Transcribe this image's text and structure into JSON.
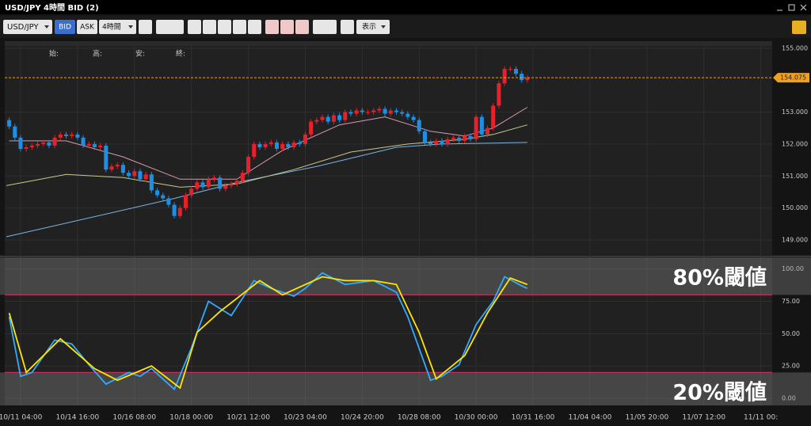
{
  "window": {
    "title": "USD/JPY 4時間 BID (2)"
  },
  "toolbar": {
    "symbol": "USD/JPY",
    "bid": "BID",
    "ask": "ASK",
    "timeframe": "4時間",
    "display": "表示"
  },
  "chart_data": [
    {
      "type": "candlestick",
      "ohlc_labels": [
        "始:",
        "高:",
        "安:",
        "終:"
      ],
      "xlim": [
        -0.5,
        134
      ],
      "ylim": [
        148.53,
        155.07
      ],
      "yticks": [
        {
          "value": 149,
          "label": "149.000"
        },
        {
          "value": 150,
          "label": "150.000"
        },
        {
          "value": 151,
          "label": "151.000"
        },
        {
          "value": 152,
          "label": "152.000"
        },
        {
          "value": 153,
          "label": "153.000"
        },
        {
          "value": 155,
          "label": "155.000"
        }
      ],
      "up_color": "#e8202a",
      "down_color": "#1e8fe6",
      "current_price": 154.075,
      "current_price_color": "#f0a020",
      "candles": [
        [
          152.75,
          152.83,
          152.47,
          152.55
        ],
        [
          152.55,
          152.63,
          152.12,
          152.2
        ],
        [
          152.2,
          152.28,
          151.77,
          151.85
        ],
        [
          151.85,
          151.98,
          151.77,
          151.9
        ],
        [
          151.9,
          152.03,
          151.82,
          151.95
        ],
        [
          151.95,
          152.08,
          151.87,
          152.0
        ],
        [
          152.0,
          152.13,
          151.92,
          152.05
        ],
        [
          152.05,
          152.13,
          151.87,
          151.95
        ],
        [
          151.95,
          152.28,
          151.87,
          152.2
        ],
        [
          152.2,
          152.38,
          152.12,
          152.3
        ],
        [
          152.3,
          152.38,
          152.17,
          152.25
        ],
        [
          152.25,
          152.38,
          152.17,
          152.3
        ],
        [
          152.3,
          152.38,
          152.12,
          152.2
        ],
        [
          152.2,
          152.28,
          151.87,
          151.95
        ],
        [
          151.95,
          152.08,
          151.87,
          152.0
        ],
        [
          152.0,
          152.08,
          151.82,
          151.9
        ],
        [
          151.9,
          152.03,
          151.82,
          151.95
        ],
        [
          151.95,
          152.03,
          151.12,
          151.2
        ],
        [
          151.2,
          151.38,
          151.12,
          151.3
        ],
        [
          151.3,
          151.43,
          151.22,
          151.35
        ],
        [
          151.35,
          151.43,
          151.02,
          151.1
        ],
        [
          151.1,
          151.18,
          150.92,
          151.0
        ],
        [
          151.0,
          151.23,
          150.92,
          151.15
        ],
        [
          151.15,
          151.23,
          150.82,
          150.9
        ],
        [
          150.9,
          151.13,
          150.82,
          151.05
        ],
        [
          151.05,
          151.13,
          150.47,
          150.55
        ],
        [
          150.55,
          150.63,
          150.32,
          150.4
        ],
        [
          150.4,
          150.48,
          150.22,
          150.3
        ],
        [
          150.3,
          150.38,
          150.02,
          150.1
        ],
        [
          150.1,
          150.18,
          149.67,
          149.75
        ],
        [
          149.75,
          150.08,
          149.67,
          150.0
        ],
        [
          150.0,
          150.48,
          149.92,
          150.4
        ],
        [
          150.4,
          150.68,
          150.32,
          150.6
        ],
        [
          150.6,
          150.88,
          150.52,
          150.8
        ],
        [
          150.8,
          150.88,
          150.57,
          150.65
        ],
        [
          150.65,
          150.98,
          150.57,
          150.9
        ],
        [
          150.9,
          151.03,
          150.82,
          150.95
        ],
        [
          150.95,
          151.03,
          150.52,
          150.6
        ],
        [
          150.6,
          150.78,
          150.52,
          150.7
        ],
        [
          150.7,
          150.83,
          150.62,
          150.75
        ],
        [
          150.75,
          150.93,
          150.67,
          150.85
        ],
        [
          150.85,
          151.18,
          150.77,
          151.1
        ],
        [
          151.1,
          151.68,
          151.02,
          151.6
        ],
        [
          151.6,
          152.08,
          151.52,
          152.0
        ],
        [
          152.0,
          152.08,
          151.82,
          151.9
        ],
        [
          151.9,
          152.08,
          151.82,
          152.0
        ],
        [
          152.0,
          152.13,
          151.92,
          152.05
        ],
        [
          152.05,
          152.13,
          151.77,
          151.85
        ],
        [
          151.85,
          152.08,
          151.77,
          152.0
        ],
        [
          152.0,
          152.08,
          151.82,
          151.9
        ],
        [
          151.9,
          152.13,
          151.82,
          152.05
        ],
        [
          152.05,
          152.13,
          151.92,
          152.0
        ],
        [
          152.0,
          152.38,
          151.92,
          152.3
        ],
        [
          152.3,
          152.78,
          152.22,
          152.7
        ],
        [
          152.7,
          152.83,
          152.62,
          152.75
        ],
        [
          152.75,
          152.93,
          152.67,
          152.85
        ],
        [
          152.85,
          152.93,
          152.62,
          152.7
        ],
        [
          152.7,
          152.98,
          152.62,
          152.9
        ],
        [
          152.9,
          152.98,
          152.67,
          152.75
        ],
        [
          152.75,
          153.08,
          152.67,
          153.0
        ],
        [
          153.0,
          153.08,
          152.87,
          152.95
        ],
        [
          152.95,
          153.13,
          152.87,
          153.05
        ],
        [
          153.05,
          153.13,
          152.92,
          153.0
        ],
        [
          153.0,
          153.08,
          152.92,
          153.0
        ],
        [
          153.0,
          153.13,
          152.92,
          153.05
        ],
        [
          153.05,
          153.18,
          152.97,
          153.1
        ],
        [
          153.1,
          153.18,
          152.87,
          152.95
        ],
        [
          152.95,
          153.13,
          152.87,
          153.05
        ],
        [
          153.05,
          153.13,
          152.92,
          153.0
        ],
        [
          153.0,
          153.08,
          152.87,
          152.95
        ],
        [
          152.95,
          153.03,
          152.77,
          152.85
        ],
        [
          152.85,
          152.93,
          152.67,
          152.75
        ],
        [
          152.75,
          152.83,
          152.32,
          152.4
        ],
        [
          152.4,
          152.48,
          151.97,
          152.05
        ],
        [
          152.05,
          152.13,
          151.92,
          152.0
        ],
        [
          152.0,
          152.18,
          151.92,
          152.1
        ],
        [
          152.1,
          152.18,
          151.92,
          152.0
        ],
        [
          152.0,
          152.23,
          151.92,
          152.15
        ],
        [
          152.15,
          152.28,
          152.07,
          152.2
        ],
        [
          152.2,
          152.28,
          152.02,
          152.1
        ],
        [
          152.1,
          152.33,
          152.02,
          152.25
        ],
        [
          152.25,
          152.33,
          152.07,
          152.15
        ],
        [
          152.15,
          152.93,
          152.07,
          152.85
        ],
        [
          152.85,
          152.93,
          152.22,
          152.3
        ],
        [
          152.3,
          152.58,
          152.22,
          152.5
        ],
        [
          152.5,
          153.28,
          152.42,
          153.2
        ],
        [
          153.2,
          153.98,
          153.12,
          153.9
        ],
        [
          153.9,
          154.43,
          153.82,
          154.35
        ],
        [
          154.35,
          154.43,
          154.27,
          154.35
        ],
        [
          154.35,
          154.43,
          154.12,
          154.2
        ],
        [
          154.2,
          154.28,
          153.92,
          154.0
        ],
        [
          154.0,
          154.15,
          153.92,
          154.075
        ]
      ],
      "lines": [
        {
          "color": "#7ab4e6",
          "x": [
            -0.5,
            29,
            40,
            54,
            68,
            76,
            91
          ],
          "values": [
            149.1,
            150.3,
            150.8,
            151.3,
            151.9,
            152.0,
            152.05
          ]
        },
        {
          "color": "#c8c890",
          "x": [
            -0.5,
            10,
            20,
            30,
            40,
            50,
            60,
            70,
            80,
            85,
            91
          ],
          "values": [
            150.7,
            151.05,
            150.95,
            150.65,
            150.75,
            151.2,
            151.75,
            152.0,
            152.15,
            152.3,
            152.6
          ]
        },
        {
          "color": "#d89ab4",
          "x": [
            0,
            10,
            20,
            30,
            40,
            48,
            58,
            66,
            74,
            80,
            85,
            91
          ],
          "values": [
            152.1,
            152.1,
            151.6,
            150.9,
            150.9,
            151.8,
            152.6,
            152.85,
            152.4,
            152.25,
            152.5,
            153.15
          ]
        }
      ]
    },
    {
      "type": "line",
      "xlim": [
        -0.5,
        134
      ],
      "ylim": [
        -5.5,
        109
      ],
      "yticks": [
        {
          "value": 100,
          "label": "100.00"
        },
        {
          "value": 75,
          "label": "75.00"
        },
        {
          "value": 50,
          "label": "50.00"
        },
        {
          "value": 25,
          "label": "25.00"
        },
        {
          "value": 0,
          "label": "0.00"
        }
      ],
      "xticks": [
        {
          "value": 2,
          "label": "10/11 04:00"
        },
        {
          "value": 12,
          "label": "10/14 16:00"
        },
        {
          "value": 22,
          "label": "10/16 08:00"
        },
        {
          "value": 32,
          "label": "10/18 00:00"
        },
        {
          "value": 42,
          "label": "10/21 12:00"
        },
        {
          "value": 52,
          "label": "10/23 04:00"
        },
        {
          "value": 62,
          "label": "10/24 20:00"
        },
        {
          "value": 72,
          "label": "10/28 08:00"
        },
        {
          "value": 82,
          "label": "10/30 00:00"
        },
        {
          "value": 92,
          "label": "10/31 16:00"
        },
        {
          "value": 102,
          "label": "11/04 04:00"
        },
        {
          "value": 112,
          "label": "11/05 20:00"
        },
        {
          "value": 122,
          "label": "11/07 12:00"
        },
        {
          "value": 132,
          "label": "11/11 00:"
        }
      ],
      "series": [
        {
          "color": "#33aaff",
          "x": [
            0,
            2,
            4,
            8,
            11,
            14,
            17,
            21,
            23,
            25,
            29,
            32,
            35,
            39,
            43,
            46,
            50,
            52,
            55,
            59,
            64,
            68,
            70,
            74,
            76,
            79,
            82,
            85,
            87,
            90,
            91
          ],
          "values": [
            63,
            17,
            20,
            45,
            42,
            26,
            11,
            20,
            17,
            23,
            7,
            39,
            75,
            64,
            91,
            85,
            79,
            85,
            97,
            88,
            91,
            82,
            63,
            14,
            17,
            26,
            57,
            75,
            94,
            87,
            85
          ]
        },
        {
          "color": "#ffe600",
          "x": [
            0,
            3,
            9,
            15,
            19,
            25,
            30,
            33,
            37,
            44,
            48,
            55,
            59,
            64,
            68,
            72,
            75,
            80,
            84,
            88,
            91
          ],
          "values": [
            66,
            20,
            46,
            23,
            14,
            25,
            8,
            51,
            67,
            91,
            80,
            94,
            91,
            91,
            88,
            51,
            15,
            33,
            66,
            93,
            88
          ]
        }
      ],
      "thresholds": [
        80,
        20
      ],
      "threshold_color": "#c0305a",
      "annotations": [
        "80%閾値",
        "20%閾値"
      ]
    }
  ]
}
